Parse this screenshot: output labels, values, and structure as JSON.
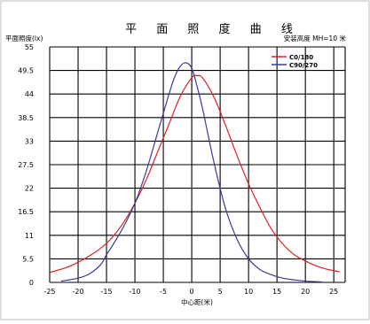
{
  "chart_data": {
    "type": "line",
    "title": "平 面 照 度 曲 线",
    "ylabel": "平面照度(lx)",
    "xlabel": "中心距(米)",
    "annotation": "安装高度  MH=10 米",
    "xlim": [
      -25,
      27
    ],
    "ylim": [
      0,
      55
    ],
    "xticks": [
      "-25",
      "-20",
      "-15",
      "-10",
      "-5",
      "0",
      "5",
      "10",
      "15",
      "20",
      "25"
    ],
    "yticks": [
      "0",
      "5.5",
      "11",
      "16.5",
      "22",
      "27.5",
      "33",
      "38.5",
      "44",
      "49.5",
      "55"
    ],
    "grid": true,
    "legend_position": "top-right",
    "series": [
      {
        "name": "C0/180",
        "color": "#e02020",
        "x": [
          -25,
          -22,
          -20,
          -18,
          -16,
          -14,
          -12,
          -10,
          -8,
          -6,
          -4,
          -2,
          0,
          1,
          2,
          4,
          6,
          8,
          10,
          12,
          14,
          16,
          18,
          20,
          22,
          24,
          26
        ],
        "y": [
          2.3,
          3.5,
          4.7,
          6.2,
          8.0,
          10.5,
          14.0,
          18.5,
          24.0,
          30.5,
          37.0,
          43.5,
          47.8,
          48.3,
          47.6,
          43.0,
          36.5,
          29.5,
          23.0,
          17.5,
          12.5,
          9.0,
          6.5,
          5.0,
          3.8,
          3.0,
          2.5
        ]
      },
      {
        "name": "C90/270",
        "color": "#3a3a9a",
        "x": [
          -23,
          -20,
          -18,
          -16,
          -15,
          -14,
          -12,
          -10,
          -8,
          -6,
          -4,
          -3,
          -2,
          -1,
          0,
          1,
          2,
          4,
          6,
          8,
          10,
          12,
          14,
          16,
          18,
          20,
          23
        ],
        "y": [
          0.3,
          1.0,
          2.0,
          4.2,
          6.5,
          8.5,
          13.0,
          18.5,
          26.0,
          35.0,
          44.0,
          48.0,
          50.5,
          51.3,
          50.0,
          45.5,
          40.0,
          27.5,
          17.0,
          10.0,
          5.5,
          3.0,
          1.8,
          1.0,
          0.6,
          0.3,
          0.1
        ]
      }
    ]
  }
}
